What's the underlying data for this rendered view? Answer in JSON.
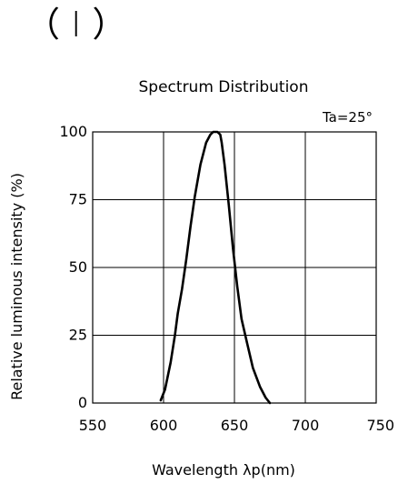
{
  "header": {
    "section_label": "（ I ）"
  },
  "chart_data": {
    "type": "line",
    "title": "Spectrum Distribution",
    "annotation": "Ta=25°",
    "xlabel": "Wavelength λp(nm)",
    "ylabel": "Relative luminous intensity (%)",
    "xlim": [
      550,
      750
    ],
    "ylim": [
      0,
      100
    ],
    "x_ticks": [
      550,
      600,
      650,
      700,
      750
    ],
    "y_ticks": [
      0,
      25,
      50,
      75,
      100
    ],
    "x_tick_labels": [
      "550",
      "600",
      "650",
      "700",
      "750"
    ],
    "y_tick_labels": [
      "0",
      "25",
      "50",
      "75",
      "100"
    ],
    "grid": true,
    "series": [
      {
        "x": [
          598,
          601,
          605,
          608,
          610,
          613,
          616,
          619,
          622,
          626,
          630,
          633,
          635,
          636,
          638,
          640,
          641,
          643,
          646,
          649,
          652,
          655,
          659,
          663,
          668,
          672,
          675
        ],
        "y": [
          1,
          5,
          15,
          25,
          33,
          42,
          53,
          65,
          76,
          88,
          96,
          99,
          100,
          100,
          100,
          99,
          96,
          88,
          73,
          57,
          43,
          31,
          22,
          13,
          6,
          2,
          0
        ]
      }
    ]
  }
}
